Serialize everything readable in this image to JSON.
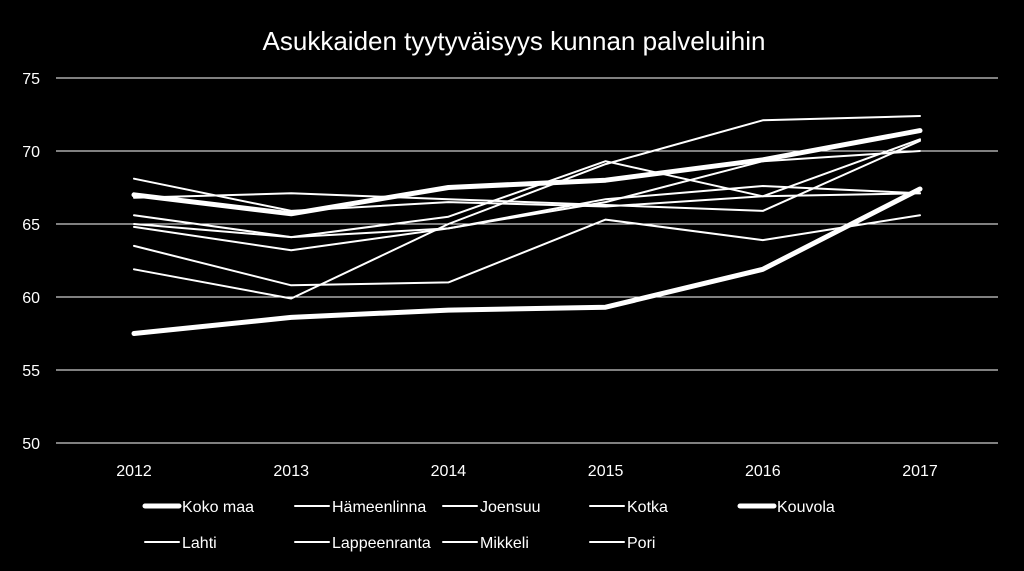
{
  "colors": {
    "background": "#000000",
    "text": "#ffffff",
    "grid": "#ffffff",
    "series": "#ffffff"
  },
  "chart_data": {
    "type": "line",
    "title": "Asukkaiden tyytyväisyys kunnan palveluihin",
    "xlabel": "",
    "ylabel": "",
    "x": [
      "2012",
      "2013",
      "2014",
      "2015",
      "2016",
      "2017"
    ],
    "ylim": [
      50,
      75
    ],
    "yticks": [
      50,
      55,
      60,
      65,
      70,
      75
    ],
    "grid": true,
    "legend_position": "bottom",
    "series": [
      {
        "name": "Koko maa",
        "emphasis": "thick",
        "values": [
          67.0,
          65.7,
          67.5,
          68.0,
          69.4,
          71.4
        ]
      },
      {
        "name": "Hämeenlinna",
        "emphasis": "thin",
        "values": [
          68.1,
          65.9,
          66.5,
          66.2,
          66.9,
          70.8
        ]
      },
      {
        "name": "Joensuu",
        "emphasis": "thin",
        "values": [
          65.6,
          64.1,
          65.5,
          69.3,
          66.9,
          67.1
        ]
      },
      {
        "name": "Kotka",
        "emphasis": "thin",
        "values": [
          64.8,
          63.2,
          64.7,
          66.7,
          67.6,
          67.1
        ]
      },
      {
        "name": "Kouvola",
        "emphasis": "thick",
        "values": [
          57.5,
          58.6,
          59.1,
          59.3,
          61.9,
          67.4
        ]
      },
      {
        "name": "Lahti",
        "emphasis": "thin",
        "values": [
          61.9,
          59.9,
          65.0,
          69.1,
          72.1,
          72.4
        ]
      },
      {
        "name": "Lappeenranta",
        "emphasis": "thin",
        "values": [
          63.5,
          60.8,
          61.0,
          65.3,
          63.9,
          65.6
        ]
      },
      {
        "name": "Mikkeli",
        "emphasis": "thin",
        "values": [
          65.0,
          64.1,
          64.7,
          66.5,
          69.3,
          70.0
        ]
      },
      {
        "name": "Pori",
        "emphasis": "thin",
        "values": [
          66.8,
          67.1,
          66.7,
          66.3,
          65.9,
          70.7
        ]
      }
    ]
  }
}
